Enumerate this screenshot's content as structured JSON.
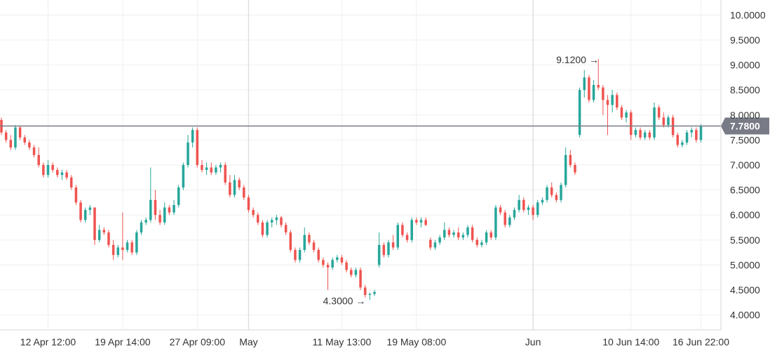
{
  "chart_data": {
    "type": "candlestick",
    "colors": {
      "up": "#26a69a",
      "down": "#ef5350",
      "grid": "#efefef",
      "price_line": "#787b86",
      "price_tag_bg": "#787b86",
      "axis_text": "#333333"
    },
    "y_ticks": [
      "4.0000",
      "4.5000",
      "5.0000",
      "5.5000",
      "6.0000",
      "6.5000",
      "7.0000",
      "7.5000",
      "8.0000",
      "8.5000",
      "9.0000",
      "9.5000",
      "10.0000"
    ],
    "x_ticks": [
      {
        "label": "12 Apr 12:00",
        "index": 10
      },
      {
        "label": "19 Apr 14:00",
        "index": 26
      },
      {
        "label": "27 Apr 09:00",
        "index": 42
      },
      {
        "label": "May",
        "index": 53
      },
      {
        "label": "11 May 13:00",
        "index": 73
      },
      {
        "label": "19 May 08:00",
        "index": 89
      },
      {
        "label": "Jun",
        "index": 114
      },
      {
        "label": "10 Jun 14:00",
        "index": 135
      },
      {
        "label": "16 Jun 22:00",
        "index": 150
      }
    ],
    "last_price": "7.7800",
    "last_price_value": 7.78,
    "annotations": [
      {
        "label": "9.1200",
        "value": 9.12,
        "index": 129
      },
      {
        "label": "4.3000",
        "value": 4.3,
        "index": 79
      }
    ],
    "ylim": [
      3.7,
      10.3
    ],
    "candles": [
      [
        7.9,
        7.95,
        7.6,
        7.65
      ],
      [
        7.65,
        7.7,
        7.45,
        7.5
      ],
      [
        7.5,
        7.6,
        7.3,
        7.35
      ],
      [
        7.35,
        7.8,
        7.3,
        7.75
      ],
      [
        7.75,
        7.78,
        7.5,
        7.55
      ],
      [
        7.55,
        7.6,
        7.4,
        7.45
      ],
      [
        7.45,
        7.5,
        7.3,
        7.35
      ],
      [
        7.35,
        7.4,
        7.15,
        7.2
      ],
      [
        7.2,
        7.35,
        6.95,
        7.0
      ],
      [
        7.0,
        7.05,
        6.75,
        6.8
      ],
      [
        6.8,
        7.1,
        6.75,
        7.0
      ],
      [
        7.0,
        7.05,
        6.85,
        6.9
      ],
      [
        6.9,
        6.95,
        6.75,
        6.8
      ],
      [
        6.8,
        6.9,
        6.7,
        6.85
      ],
      [
        6.85,
        6.9,
        6.7,
        6.75
      ],
      [
        6.75,
        6.8,
        6.5,
        6.55
      ],
      [
        6.55,
        6.6,
        6.2,
        6.25
      ],
      [
        6.25,
        6.3,
        5.85,
        5.9
      ],
      [
        5.9,
        6.15,
        5.85,
        6.1
      ],
      [
        6.1,
        6.2,
        6.0,
        6.15
      ],
      [
        6.15,
        6.15,
        5.4,
        5.5
      ],
      [
        5.5,
        5.8,
        5.45,
        5.7
      ],
      [
        5.7,
        5.75,
        5.6,
        5.65
      ],
      [
        5.65,
        5.7,
        5.35,
        5.4
      ],
      [
        5.4,
        5.5,
        5.1,
        5.2
      ],
      [
        5.2,
        5.4,
        5.15,
        5.35
      ],
      [
        5.35,
        6.05,
        5.1,
        5.3
      ],
      [
        5.3,
        5.5,
        5.25,
        5.45
      ],
      [
        5.45,
        5.5,
        5.2,
        5.25
      ],
      [
        5.25,
        5.7,
        5.2,
        5.65
      ],
      [
        5.65,
        5.9,
        5.6,
        5.85
      ],
      [
        5.85,
        5.95,
        5.8,
        5.9
      ],
      [
        5.9,
        6.95,
        5.85,
        6.3
      ],
      [
        6.3,
        6.5,
        5.9,
        6.0
      ],
      [
        6.0,
        6.1,
        5.8,
        5.85
      ],
      [
        5.85,
        6.25,
        5.8,
        6.15
      ],
      [
        6.15,
        6.2,
        6.0,
        6.05
      ],
      [
        6.05,
        6.3,
        6.0,
        6.2
      ],
      [
        6.2,
        6.6,
        6.15,
        6.55
      ],
      [
        6.55,
        7.05,
        6.5,
        7.0
      ],
      [
        7.0,
        7.6,
        6.95,
        7.45
      ],
      [
        7.45,
        7.75,
        7.35,
        7.7
      ],
      [
        7.7,
        7.75,
        6.95,
        7.0
      ],
      [
        7.0,
        7.1,
        6.85,
        6.9
      ],
      [
        6.9,
        7.05,
        6.8,
        6.95
      ],
      [
        6.95,
        7.05,
        6.8,
        6.85
      ],
      [
        6.85,
        7.0,
        6.8,
        6.95
      ],
      [
        6.95,
        7.05,
        6.85,
        7.0
      ],
      [
        7.0,
        7.05,
        6.6,
        6.65
      ],
      [
        6.65,
        6.8,
        6.35,
        6.4
      ],
      [
        6.4,
        6.8,
        6.35,
        6.7
      ],
      [
        6.7,
        6.75,
        6.5,
        6.55
      ],
      [
        6.55,
        6.6,
        6.3,
        6.35
      ],
      [
        6.35,
        6.4,
        6.05,
        6.1
      ],
      [
        6.1,
        6.15,
        5.95,
        6.0
      ],
      [
        6.0,
        6.05,
        5.8,
        5.85
      ],
      [
        5.85,
        5.9,
        5.55,
        5.6
      ],
      [
        5.6,
        5.9,
        5.55,
        5.85
      ],
      [
        5.85,
        5.95,
        5.75,
        5.9
      ],
      [
        5.9,
        6.0,
        5.8,
        5.95
      ],
      [
        5.95,
        5.98,
        5.75,
        5.8
      ],
      [
        5.8,
        5.85,
        5.6,
        5.65
      ],
      [
        5.65,
        5.7,
        5.25,
        5.3
      ],
      [
        5.3,
        5.35,
        5.05,
        5.1
      ],
      [
        5.1,
        5.35,
        5.05,
        5.3
      ],
      [
        5.3,
        5.75,
        5.25,
        5.6
      ],
      [
        5.6,
        5.65,
        5.4,
        5.45
      ],
      [
        5.45,
        5.5,
        5.25,
        5.3
      ],
      [
        5.3,
        5.35,
        5.05,
        5.1
      ],
      [
        5.1,
        5.15,
        4.95,
        5.0
      ],
      [
        5.0,
        5.05,
        4.5,
        4.95
      ],
      [
        4.95,
        5.15,
        4.9,
        5.1
      ],
      [
        5.1,
        5.2,
        5.05,
        5.15
      ],
      [
        5.15,
        5.2,
        5.0,
        5.05
      ],
      [
        5.05,
        5.1,
        4.85,
        4.9
      ],
      [
        4.9,
        4.95,
        4.75,
        4.8
      ],
      [
        4.8,
        4.95,
        4.75,
        4.9
      ],
      [
        4.9,
        4.95,
        4.5,
        4.55
      ],
      [
        4.55,
        4.6,
        4.35,
        4.4
      ],
      [
        4.4,
        4.45,
        4.3,
        4.42
      ],
      [
        4.42,
        4.5,
        4.38,
        4.46
      ],
      [
        5.0,
        5.65,
        4.95,
        5.4
      ],
      [
        5.4,
        5.45,
        5.15,
        5.2
      ],
      [
        5.2,
        5.5,
        5.15,
        5.45
      ],
      [
        5.45,
        5.6,
        5.3,
        5.35
      ],
      [
        5.35,
        5.85,
        5.3,
        5.8
      ],
      [
        5.8,
        5.85,
        5.55,
        5.6
      ],
      [
        5.6,
        5.65,
        5.45,
        5.5
      ],
      [
        5.5,
        5.95,
        5.45,
        5.9
      ],
      [
        5.9,
        5.95,
        5.8,
        5.85
      ],
      [
        5.85,
        5.95,
        5.75,
        5.9
      ],
      [
        5.9,
        5.95,
        5.78,
        5.8
      ],
      [
        5.5,
        5.55,
        5.3,
        5.35
      ],
      [
        5.35,
        5.5,
        5.3,
        5.45
      ],
      [
        5.45,
        5.6,
        5.4,
        5.55
      ],
      [
        5.55,
        5.85,
        5.5,
        5.7
      ],
      [
        5.7,
        5.75,
        5.55,
        5.6
      ],
      [
        5.6,
        5.7,
        5.55,
        5.65
      ],
      [
        5.65,
        5.75,
        5.5,
        5.55
      ],
      [
        5.55,
        5.65,
        5.5,
        5.6
      ],
      [
        5.6,
        5.8,
        5.55,
        5.75
      ],
      [
        5.75,
        5.8,
        5.45,
        5.5
      ],
      [
        5.5,
        5.55,
        5.35,
        5.4
      ],
      [
        5.4,
        5.5,
        5.35,
        5.45
      ],
      [
        5.45,
        5.7,
        5.4,
        5.65
      ],
      [
        5.65,
        5.7,
        5.5,
        5.55
      ],
      [
        5.55,
        6.2,
        5.5,
        6.15
      ],
      [
        6.15,
        6.2,
        6.0,
        6.05
      ],
      [
        6.05,
        6.1,
        5.75,
        5.8
      ],
      [
        5.8,
        6.0,
        5.75,
        5.95
      ],
      [
        5.95,
        6.15,
        5.9,
        6.1
      ],
      [
        6.1,
        6.4,
        6.05,
        6.3
      ],
      [
        6.3,
        6.35,
        6.05,
        6.1
      ],
      [
        6.1,
        6.2,
        6.0,
        6.15
      ],
      [
        6.15,
        6.2,
        5.9,
        6.0
      ],
      [
        6.0,
        6.3,
        5.95,
        6.25
      ],
      [
        6.25,
        6.35,
        6.2,
        6.3
      ],
      [
        6.3,
        6.6,
        6.25,
        6.55
      ],
      [
        6.55,
        6.65,
        6.35,
        6.4
      ],
      [
        6.4,
        6.45,
        6.25,
        6.3
      ],
      [
        6.3,
        6.65,
        6.25,
        6.6
      ],
      [
        6.6,
        7.35,
        6.55,
        7.2
      ],
      [
        7.2,
        7.3,
        6.95,
        7.0
      ],
      [
        7.0,
        7.05,
        6.8,
        6.85
      ],
      [
        7.6,
        8.55,
        7.55,
        8.5
      ],
      [
        8.5,
        8.9,
        8.35,
        8.75
      ],
      [
        8.75,
        8.8,
        8.25,
        8.3
      ],
      [
        8.3,
        8.7,
        8.25,
        8.6
      ],
      [
        8.6,
        9.12,
        8.5,
        8.55
      ],
      [
        8.55,
        8.6,
        8.0,
        8.3
      ],
      [
        8.3,
        8.4,
        7.6,
        8.2
      ],
      [
        8.2,
        8.5,
        8.05,
        8.4
      ],
      [
        8.4,
        8.45,
        8.1,
        8.15
      ],
      [
        8.15,
        8.2,
        7.9,
        7.95
      ],
      [
        7.95,
        8.1,
        7.85,
        8.05
      ],
      [
        8.05,
        8.1,
        7.5,
        7.6
      ],
      [
        7.6,
        7.75,
        7.55,
        7.7
      ],
      [
        7.7,
        7.75,
        7.5,
        7.55
      ],
      [
        7.55,
        7.7,
        7.5,
        7.65
      ],
      [
        7.65,
        7.7,
        7.5,
        7.55
      ],
      [
        7.55,
        8.25,
        7.5,
        8.15
      ],
      [
        8.15,
        8.2,
        7.9,
        7.95
      ],
      [
        7.95,
        8.05,
        7.75,
        7.8
      ],
      [
        7.8,
        8.0,
        7.75,
        7.95
      ],
      [
        7.95,
        8.0,
        7.55,
        7.6
      ],
      [
        7.6,
        7.65,
        7.35,
        7.4
      ],
      [
        7.4,
        7.5,
        7.35,
        7.45
      ],
      [
        7.45,
        7.7,
        7.4,
        7.65
      ],
      [
        7.65,
        7.75,
        7.55,
        7.7
      ],
      [
        7.7,
        7.75,
        7.45,
        7.5
      ],
      [
        7.5,
        7.82,
        7.45,
        7.78
      ]
    ]
  }
}
